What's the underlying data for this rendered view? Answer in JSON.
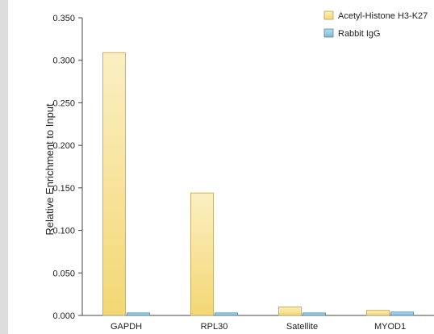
{
  "chart_data": {
    "type": "bar",
    "title": "",
    "xlabel": "",
    "ylabel": "Relative Enrichment to Input",
    "categories": [
      "GAPDH",
      "RPL30",
      "Satellite",
      "MYOD1"
    ],
    "series": [
      {
        "name": "Acetyl-Histone H3-K27",
        "values": [
          0.309,
          0.144,
          0.01,
          0.006
        ],
        "color": "#f5dc8c"
      },
      {
        "name": "Rabbit IgG",
        "values": [
          0.003,
          0.003,
          0.003,
          0.004
        ],
        "color": "#8fc4dc"
      }
    ],
    "ylim": [
      0,
      0.35
    ],
    "yticks": [
      "0.000",
      "0.050",
      "0.100",
      "0.150",
      "0.200",
      "0.250",
      "0.300",
      "0.350"
    ],
    "grid": false,
    "legend_position": "top-right"
  }
}
